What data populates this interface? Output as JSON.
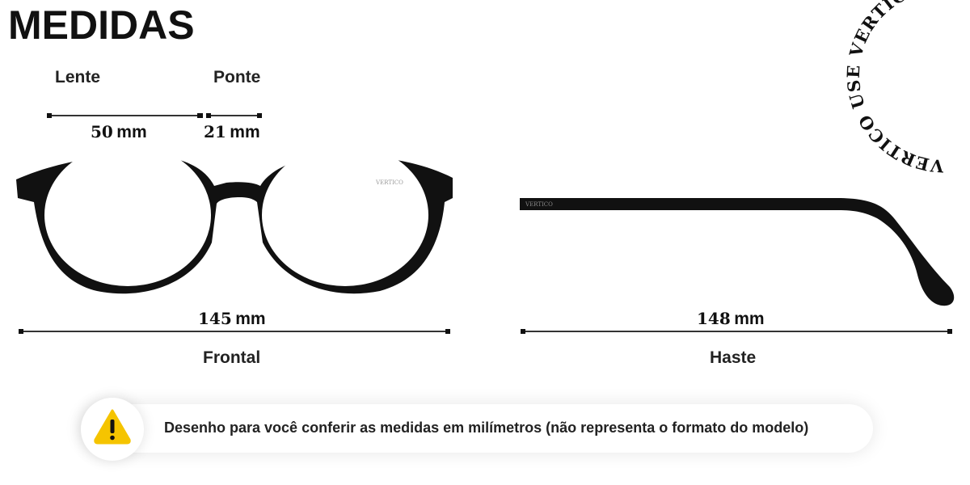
{
  "title": "MEDIDAS",
  "frontal": {
    "lens_label": "Lente",
    "bridge_label": "Ponte",
    "lens_value": "50",
    "bridge_value": "21",
    "total_value": "145",
    "unit": "mm",
    "caption": "Frontal",
    "brand_mark": "VERTICO"
  },
  "temple": {
    "length_value": "148",
    "unit": "mm",
    "caption": "Haste",
    "brand_mark": "VERTICO"
  },
  "notice": {
    "icon": "warning-icon",
    "icon_color": "#f5c400",
    "text": "Desenho para você conferir as medidas em milímetros (não representa o formato do modelo)"
  },
  "logo": {
    "circular_text": "VERTICO USE VERTICO USE VERTICO USE"
  }
}
